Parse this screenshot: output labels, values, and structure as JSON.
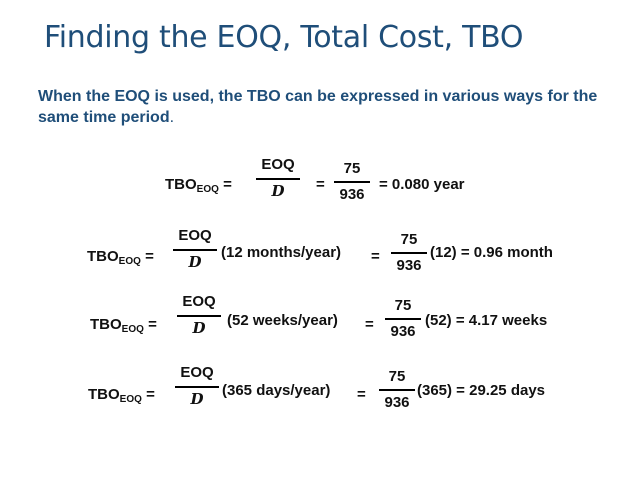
{
  "title": "Finding the EOQ, Total Cost, TBO",
  "intro": "When the EOQ is used, the TBO can be expressed in various ways for the same time period",
  "intro_end": ".",
  "equations": [
    {
      "lhs": "TBO",
      "lhs_sub": "EOQ",
      "eq": "=",
      "frac_num": "EOQ",
      "frac_den": "D",
      "multiplier": "",
      "eq2": "=",
      "num2": "75",
      "den2": "936",
      "result": "= 0.080 year"
    },
    {
      "lhs": "TBO",
      "lhs_sub": "EOQ",
      "eq": "=",
      "frac_num": "EOQ",
      "frac_den": "D",
      "multiplier": "(12 months/year)",
      "eq2": "=",
      "num2": "75",
      "den2": "936",
      "result": "(12) = 0.96 month"
    },
    {
      "lhs": "TBO",
      "lhs_sub": "EOQ",
      "eq": "=",
      "frac_num": "EOQ",
      "frac_den": "D",
      "multiplier": "(52 weeks/year)",
      "eq2": "=",
      "num2": "75",
      "den2": "936",
      "result": "(52) = 4.17 weeks"
    },
    {
      "lhs": "TBO",
      "lhs_sub": "EOQ",
      "eq": "=",
      "frac_num": "EOQ",
      "frac_den": "D",
      "multiplier": "(365 days/year)",
      "eq2": "=",
      "num2": "75",
      "den2": "936",
      "result": "(365) = 29.25 days"
    }
  ]
}
